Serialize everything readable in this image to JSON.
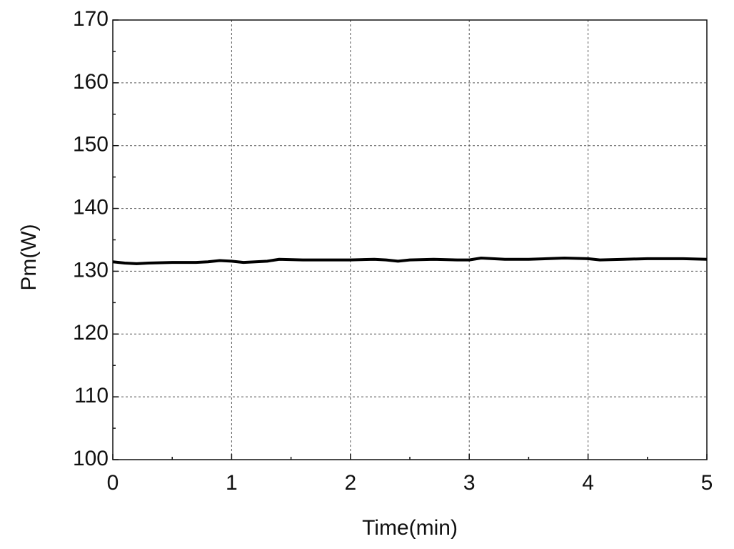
{
  "chart_data": {
    "type": "line",
    "x_label": "Time(min)",
    "y_label": "Pm(W)",
    "x": [
      0,
      0.1,
      0.2,
      0.3,
      0.5,
      0.7,
      0.8,
      0.9,
      1.0,
      1.1,
      1.3,
      1.4,
      1.6,
      1.8,
      2.0,
      2.2,
      2.3,
      2.4,
      2.5,
      2.7,
      2.9,
      3.0,
      3.1,
      3.2,
      3.3,
      3.5,
      3.8,
      4.0,
      4.1,
      4.3,
      4.5,
      4.8,
      5.0
    ],
    "series": [
      {
        "name": "Pm",
        "color": "#000000",
        "values": [
          131.5,
          131.3,
          131.2,
          131.3,
          131.4,
          131.4,
          131.5,
          131.7,
          131.6,
          131.4,
          131.6,
          131.9,
          131.8,
          131.8,
          131.8,
          131.9,
          131.8,
          131.6,
          131.8,
          131.9,
          131.8,
          131.8,
          132.1,
          132.0,
          131.9,
          131.9,
          132.1,
          132.0,
          131.8,
          131.9,
          132.0,
          132.0,
          131.9
        ]
      }
    ],
    "xlim": [
      0,
      5
    ],
    "ylim": [
      100,
      170
    ],
    "xticks": [
      0,
      1,
      2,
      3,
      4,
      5
    ],
    "yticks": [
      100,
      110,
      120,
      130,
      140,
      150,
      160,
      170
    ],
    "grid": true
  }
}
